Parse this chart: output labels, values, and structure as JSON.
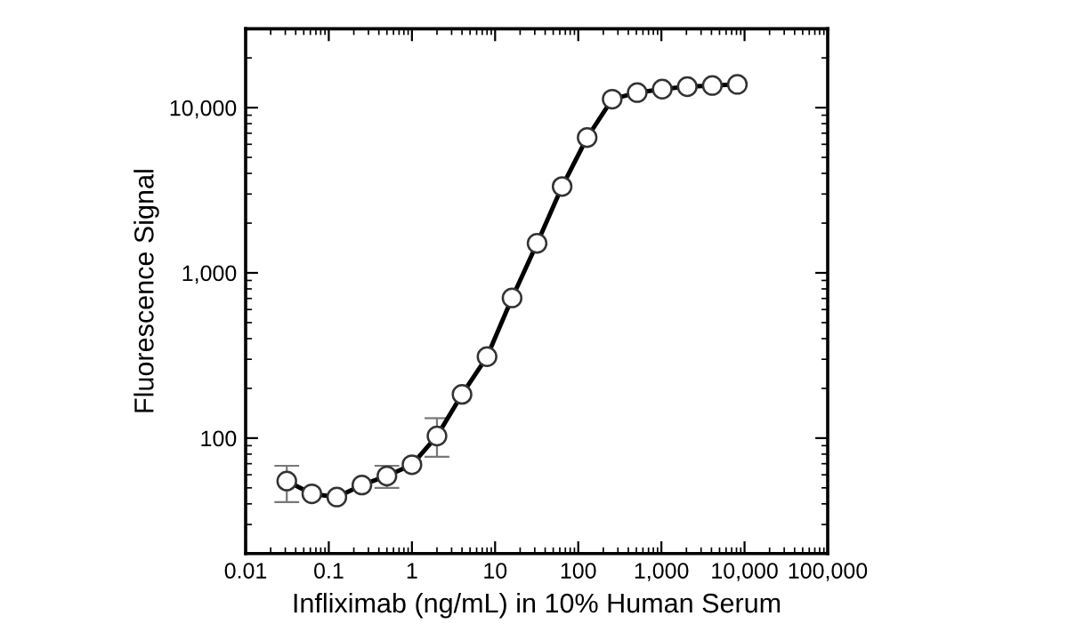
{
  "chart_data": {
    "type": "line",
    "xlabel": "Infliximab (ng/mL) in 10% Human Serum",
    "ylabel": "Fluorescence Signal",
    "log": "xy",
    "grid": false,
    "marker": "circle",
    "line_style": "solid",
    "xlim": [
      0.01,
      100000
    ],
    "ylim": [
      20,
      30000
    ],
    "xticks": [
      0.01,
      0.1,
      1,
      10,
      100,
      {
        "value": 1000,
        "label": "1,000"
      },
      {
        "value": 10000,
        "label": "10,000"
      },
      {
        "value": 100000,
        "label": "100,000"
      }
    ],
    "yticks": [
      100,
      {
        "value": 1000,
        "label": "1,000"
      },
      {
        "value": 10000,
        "label": "10,000"
      }
    ],
    "series": [
      {
        "color": "#000000",
        "x": [
          0.03125,
          0.0625,
          0.125,
          0.25,
          0.5,
          1,
          2,
          4,
          8,
          16,
          32,
          64,
          128,
          256,
          512,
          1024,
          2048,
          4096,
          8192
        ],
        "values": [
          55,
          46,
          44,
          52,
          59,
          69,
          103,
          184,
          311,
          705,
          1510,
          3330,
          6590,
          11250,
          12330,
          12950,
          13400,
          13620,
          13830
        ],
        "errors": [
          [
            41,
            68
          ],
          null,
          null,
          null,
          [
            50,
            68
          ],
          null,
          [
            77,
            132
          ],
          null,
          null,
          null,
          null,
          null,
          null,
          null,
          null,
          null,
          null,
          null,
          null
        ]
      }
    ]
  }
}
